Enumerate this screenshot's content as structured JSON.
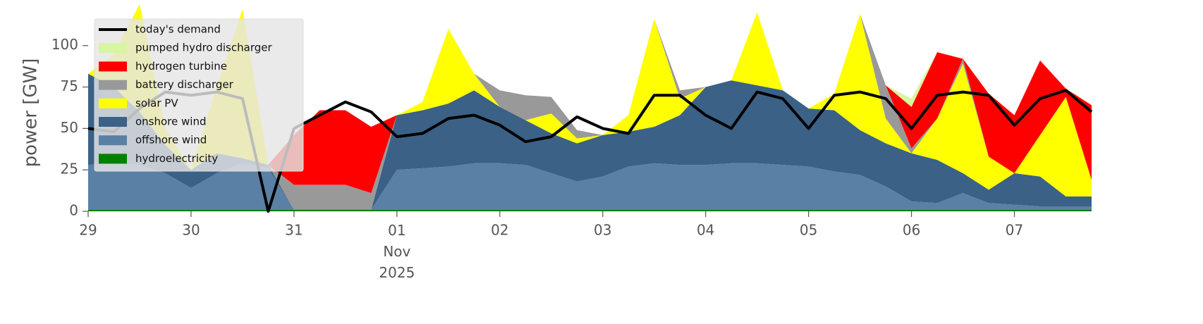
{
  "chart_data": {
    "type": "stacked-area",
    "ylabel": "power [GW]",
    "x": [
      0,
      0.25,
      0.5,
      0.75,
      1,
      1.25,
      1.5,
      1.75,
      2,
      2.25,
      2.5,
      2.75,
      3,
      3.25,
      3.5,
      3.75,
      4,
      4.25,
      4.5,
      4.75,
      5,
      5.25,
      5.5,
      5.75,
      6,
      6.25,
      6.5,
      6.75,
      7,
      7.25,
      7.5,
      7.75,
      8,
      8.25,
      8.5,
      8.75,
      9,
      9.25,
      9.5,
      9.75
    ],
    "xlim": [
      0,
      9.75
    ],
    "xticks": [
      {
        "value": 0,
        "label": "29"
      },
      {
        "value": 1,
        "label": "30"
      },
      {
        "value": 2,
        "label": "31"
      },
      {
        "value": 3,
        "label": "01\nNov\n2025"
      },
      {
        "value": 4,
        "label": "02"
      },
      {
        "value": 5,
        "label": "03"
      },
      {
        "value": 6,
        "label": "04"
      },
      {
        "value": 7,
        "label": "05"
      },
      {
        "value": 8,
        "label": "06"
      },
      {
        "value": 9,
        "label": "07"
      }
    ],
    "ylim": [
      0,
      119
    ],
    "yticks": [
      0,
      25,
      50,
      75,
      100
    ],
    "grid": false,
    "legend": "upper left",
    "series": [
      {
        "name": "today's demand",
        "type": "line",
        "color": "#000000",
        "values": [
          50,
          48,
          62,
          72,
          70,
          72,
          68,
          0,
          50,
          58,
          66,
          60,
          45,
          47,
          56,
          58,
          52,
          42,
          45,
          57,
          50,
          47,
          70,
          70,
          58,
          50,
          72,
          68,
          50,
          70,
          72,
          68,
          50,
          70,
          72,
          70,
          52,
          68,
          73,
          60
        ]
      },
      {
        "name": "pumped hydro discharger",
        "type": "area",
        "color": "#d8f5a2",
        "values": [
          0,
          0,
          0,
          0,
          0,
          0,
          0,
          0,
          0,
          0,
          0,
          0,
          0,
          0,
          0,
          0,
          0,
          0,
          0,
          0,
          0,
          0,
          0,
          0,
          0,
          0,
          0,
          0,
          0,
          0,
          0,
          0,
          5,
          0,
          0,
          0,
          0,
          0,
          0,
          0
        ]
      },
      {
        "name": "hydrogen turbine",
        "type": "area",
        "color": "#ff0000",
        "values": [
          0,
          0,
          0,
          0,
          0,
          0,
          0,
          0,
          30,
          45,
          45,
          40,
          0,
          0,
          0,
          0,
          0,
          0,
          0,
          0,
          0,
          0,
          0,
          0,
          0,
          0,
          0,
          0,
          0,
          0,
          0,
          0,
          25,
          40,
          0,
          38,
          35,
          45,
          5,
          45
        ]
      },
      {
        "name": "battery discharger",
        "type": "area",
        "color": "#999999",
        "values": [
          0,
          0,
          0,
          0,
          0,
          0,
          0,
          0,
          15,
          15,
          15,
          10,
          0,
          0,
          0,
          0,
          10,
          15,
          10,
          5,
          0,
          0,
          0,
          5,
          0,
          0,
          0,
          0,
          0,
          0,
          0,
          20,
          3,
          0,
          3,
          0,
          0,
          0,
          0,
          0
        ]
      },
      {
        "name": "solar PV",
        "type": "area",
        "color": "#ffff00",
        "values": [
          0,
          20,
          65,
          10,
          0,
          40,
          90,
          0,
          0,
          0,
          0,
          0,
          0,
          5,
          45,
          10,
          0,
          0,
          12,
          3,
          0,
          10,
          65,
          10,
          0,
          0,
          44,
          0,
          0,
          10,
          70,
          15,
          0,
          25,
          66,
          20,
          0,
          25,
          60,
          10
        ]
      },
      {
        "name": "onshore wind",
        "type": "area",
        "color": "#3b6186",
        "values": [
          55,
          46,
          32,
          17,
          11,
          12,
          3,
          2,
          0,
          0,
          0,
          0,
          33,
          35,
          38,
          44,
          34,
          27,
          24,
          23,
          25,
          21,
          22,
          30,
          47,
          50,
          47,
          45,
          35,
          37,
          27,
          26,
          29,
          26,
          12,
          8,
          19,
          18,
          6,
          6
        ]
      },
      {
        "name": "offshore wind",
        "type": "area",
        "color": "#5b80a5",
        "values": [
          27,
          28,
          27,
          22,
          13,
          22,
          28,
          25,
          0,
          0,
          0,
          0,
          24,
          25,
          26,
          28,
          28,
          27,
          22,
          17,
          20,
          26,
          28,
          27,
          27,
          28,
          28,
          27,
          26,
          23,
          21,
          14,
          5,
          4,
          10,
          4,
          3,
          2,
          2,
          2
        ]
      },
      {
        "name": "hydroelectricity",
        "type": "area",
        "color": "#008000",
        "values": [
          1,
          1,
          1,
          1,
          1,
          1,
          1,
          1,
          1,
          1,
          1,
          1,
          1,
          1,
          1,
          1,
          1,
          1,
          1,
          1,
          1,
          1,
          1,
          1,
          1,
          1,
          1,
          1,
          1,
          1,
          1,
          1,
          1,
          1,
          1,
          1,
          1,
          1,
          1,
          1
        ]
      }
    ]
  }
}
